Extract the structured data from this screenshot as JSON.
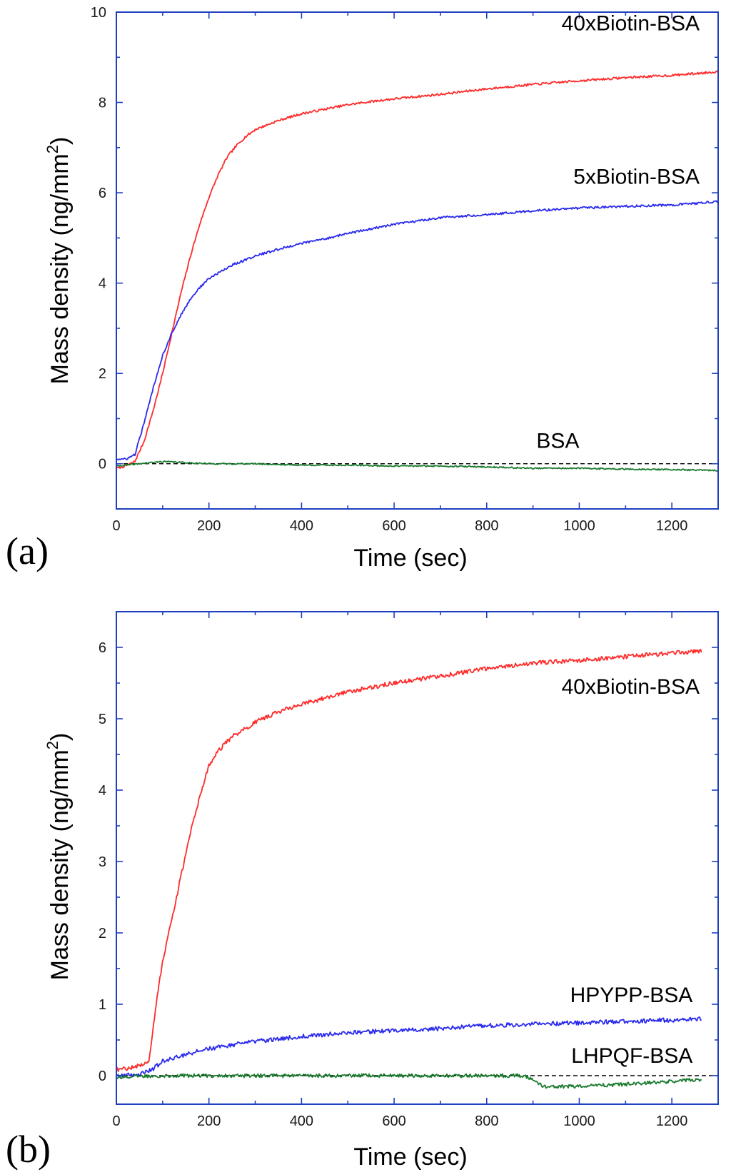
{
  "chart_data": [
    {
      "type": "line",
      "panel_label": "(a)",
      "xlabel": "Time (sec)",
      "ylabel_main": "Mass density (ng/mm",
      "ylabel_sup": "2",
      "ylabel_close": ")",
      "xlim": [
        0,
        1300
      ],
      "ylim": [
        -1,
        10
      ],
      "xticks": [
        0,
        200,
        400,
        600,
        800,
        1000,
        1200
      ],
      "xtick_labels": [
        "0",
        "200",
        "400",
        "600",
        "800",
        "1000",
        "1200"
      ],
      "yticks": [
        0,
        2,
        4,
        6,
        8,
        10
      ],
      "ytick_labels": [
        "0",
        "2",
        "4",
        "6",
        "8",
        "10"
      ],
      "zero_line": "dashed",
      "series": [
        {
          "name": "40xBiotin-BSA",
          "color": "#ff2a2a",
          "noise": 0.025,
          "x": [
            0,
            20,
            40,
            60,
            80,
            100,
            120,
            140,
            160,
            180,
            200,
            220,
            240,
            260,
            280,
            300,
            350,
            400,
            450,
            500,
            550,
            600,
            700,
            800,
            900,
            1000,
            1100,
            1200,
            1300
          ],
          "y": [
            -0.1,
            -0.05,
            0.05,
            0.5,
            1.2,
            2.0,
            2.9,
            3.8,
            4.6,
            5.3,
            5.9,
            6.4,
            6.8,
            7.05,
            7.25,
            7.4,
            7.6,
            7.75,
            7.85,
            7.95,
            8.02,
            8.08,
            8.18,
            8.3,
            8.4,
            8.48,
            8.55,
            8.6,
            8.68
          ]
        },
        {
          "name": "5xBiotin-BSA",
          "color": "#2a2aee",
          "noise": 0.025,
          "x": [
            0,
            20,
            40,
            60,
            80,
            100,
            120,
            140,
            160,
            180,
            200,
            250,
            300,
            350,
            400,
            450,
            500,
            600,
            700,
            800,
            900,
            1000,
            1100,
            1200,
            1300
          ],
          "y": [
            0.1,
            0.1,
            0.2,
            0.9,
            1.7,
            2.4,
            2.9,
            3.3,
            3.65,
            3.9,
            4.1,
            4.4,
            4.6,
            4.75,
            4.88,
            4.98,
            5.1,
            5.3,
            5.45,
            5.52,
            5.6,
            5.66,
            5.7,
            5.73,
            5.8
          ]
        },
        {
          "name": "BSA",
          "color": "#1a7a2e",
          "noise": 0.015,
          "x": [
            0,
            50,
            100,
            200,
            300,
            400,
            500,
            600,
            700,
            800,
            900,
            1000,
            1100,
            1200,
            1300
          ],
          "y": [
            -0.05,
            0.0,
            0.05,
            0.0,
            0.0,
            -0.03,
            -0.03,
            -0.05,
            -0.05,
            -0.07,
            -0.1,
            -0.1,
            -0.12,
            -0.13,
            -0.15
          ]
        }
      ],
      "labels": [
        {
          "text": "40xBiotin-BSA",
          "x": 1260,
          "y": 9.6
        },
        {
          "text": "5xBiotin-BSA",
          "x": 1260,
          "y": 6.2
        },
        {
          "text": "BSA",
          "x": 1000,
          "y": 0.35
        }
      ]
    },
    {
      "type": "line",
      "panel_label": "(b)",
      "xlabel": "Time (sec)",
      "ylabel_main": "Mass density (ng/mm",
      "ylabel_sup": "2",
      "ylabel_close": ")",
      "xlim": [
        0,
        1300
      ],
      "ylim": [
        -0.4,
        6.5
      ],
      "xticks": [
        0,
        200,
        400,
        600,
        800,
        1000,
        1200
      ],
      "xtick_labels": [
        "0",
        "200",
        "400",
        "600",
        "800",
        "1000",
        "1200"
      ],
      "yticks": [
        0,
        1,
        2,
        3,
        4,
        5,
        6
      ],
      "ytick_labels": [
        "0",
        "1",
        "2",
        "3",
        "4",
        "5",
        "6"
      ],
      "zero_line": "dashed",
      "series": [
        {
          "name": "40xBiotin-BSA",
          "color": "#ff2a2a",
          "noise": 0.03,
          "x": [
            0,
            40,
            70,
            80,
            90,
            100,
            120,
            140,
            160,
            180,
            200,
            220,
            250,
            300,
            350,
            400,
            500,
            600,
            700,
            800,
            900,
            1000,
            1100,
            1200,
            1265
          ],
          "y": [
            0.08,
            0.12,
            0.2,
            0.7,
            1.2,
            1.6,
            2.2,
            2.8,
            3.4,
            3.9,
            4.35,
            4.55,
            4.75,
            4.95,
            5.1,
            5.2,
            5.38,
            5.5,
            5.6,
            5.7,
            5.78,
            5.82,
            5.87,
            5.92,
            5.95
          ]
        },
        {
          "name": "HPYPP-BSA",
          "color": "#2a2aee",
          "noise": 0.03,
          "x": [
            0,
            50,
            80,
            100,
            150,
            200,
            300,
            400,
            500,
            600,
            700,
            800,
            900,
            1000,
            1100,
            1200,
            1265
          ],
          "y": [
            0.0,
            0.02,
            0.1,
            0.2,
            0.3,
            0.38,
            0.48,
            0.55,
            0.6,
            0.63,
            0.66,
            0.7,
            0.72,
            0.74,
            0.76,
            0.78,
            0.8
          ]
        },
        {
          "name": "LHPQF-BSA",
          "color": "#1a7a2e",
          "noise": 0.025,
          "x": [
            0,
            100,
            200,
            300,
            400,
            500,
            600,
            700,
            800,
            880,
            900,
            920,
            1000,
            1100,
            1200,
            1265
          ],
          "y": [
            -0.02,
            0.0,
            0.0,
            0.0,
            0.0,
            0.0,
            0.0,
            0.0,
            0.0,
            0.0,
            -0.05,
            -0.15,
            -0.15,
            -0.12,
            -0.08,
            -0.05
          ]
        }
      ],
      "labels": [
        {
          "text": "40xBiotin-BSA",
          "x": 1260,
          "y": 5.35
        },
        {
          "text": "HPYPP-BSA",
          "x": 1245,
          "y": 1.03
        },
        {
          "text": "LHPQF-BSA",
          "x": 1245,
          "y": 0.18
        }
      ]
    }
  ]
}
